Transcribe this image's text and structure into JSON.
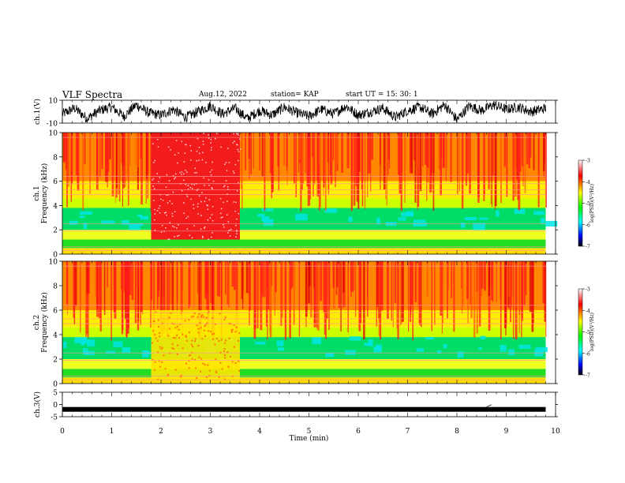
{
  "header": {
    "title": "VLF Spectra",
    "date": "Aug.12, 2022",
    "station": "station= KAP",
    "start": "start  UT  =   15: 30: 1"
  },
  "chart_data": [
    {
      "type": "line",
      "panel": "ch1-waveform",
      "ylabel": "ch.1(V)",
      "ylim": [
        -10,
        10
      ],
      "yticks": [
        "10",
        "-10"
      ],
      "xlim": [
        0,
        10
      ],
      "x": [
        0,
        0.25,
        0.5,
        0.75,
        1.0,
        1.25,
        1.5,
        1.75,
        2.0,
        2.25,
        2.5,
        2.75,
        3.0,
        3.25,
        3.5,
        3.75,
        4.0,
        4.25,
        4.5,
        4.75,
        5.0,
        5.25,
        5.5,
        5.75,
        6.0,
        6.25,
        6.5,
        6.75,
        7.0,
        7.25,
        7.5,
        7.75,
        8.0,
        8.25,
        8.5,
        8.75,
        9.0,
        9.25,
        9.5,
        9.8
      ],
      "values": [
        -2,
        3,
        -6,
        1,
        4,
        -4,
        6,
        -1,
        -3,
        2,
        -5,
        0,
        5,
        -2,
        3,
        -6,
        1,
        -3,
        4,
        -1,
        -4,
        2,
        -2,
        5,
        -3,
        0,
        3,
        -5,
        1,
        4,
        -2,
        6,
        -7,
        5,
        1,
        6,
        2,
        4,
        0,
        3
      ]
    },
    {
      "type": "heatmap",
      "panel": "ch1-spectrogram",
      "ylabel": "ch.1",
      "ylabel2": "Frequency  (kHz)",
      "xlim": [
        0,
        9.8
      ],
      "ylim": [
        0,
        10
      ],
      "yticks": [
        "10",
        "8",
        "6",
        "4",
        "2",
        "0"
      ],
      "colorbar": {
        "range": [
          -7,
          -3
        ],
        "ticks": [
          "-3",
          "-4",
          "-5",
          "-6",
          "-7"
        ],
        "label": "log(PSD)(V²/Hz)"
      },
      "segments": [
        {
          "x": [
            0,
            1.8
          ],
          "level": "mixed"
        },
        {
          "x": [
            1.8,
            3.6
          ],
          "level": "high"
        },
        {
          "x": [
            3.6,
            9.8
          ],
          "level": "mixed"
        }
      ]
    },
    {
      "type": "heatmap",
      "panel": "ch2-spectrogram",
      "ylabel": "ch.2",
      "ylabel2": "Frequency  (kHz)",
      "xlim": [
        0,
        9.8
      ],
      "ylim": [
        0,
        10
      ],
      "yticks": [
        "10",
        "8",
        "6",
        "4",
        "2",
        "0"
      ],
      "colorbar": {
        "range": [
          -7,
          -3
        ],
        "ticks": [
          "-3",
          "-4",
          "-5",
          "-6",
          "-7"
        ],
        "label": "log(PSD)(V²/Hz)"
      },
      "segments": [
        {
          "x": [
            0,
            1.8
          ],
          "level": "mixed"
        },
        {
          "x": [
            1.8,
            3.6
          ],
          "level": "elevated"
        },
        {
          "x": [
            3.6,
            9.8
          ],
          "level": "mixed"
        }
      ]
    },
    {
      "type": "line",
      "panel": "ch3-waveform",
      "ylabel": "ch.3(V)",
      "ylim": [
        -5,
        5
      ],
      "yticks": [
        "5",
        "0",
        "-5"
      ],
      "xlim": [
        0,
        10
      ],
      "x": [
        0,
        9.8
      ],
      "values": [
        -2,
        -2
      ]
    }
  ],
  "xaxis": {
    "label": "Time  (min)",
    "ticks": [
      "0",
      "1",
      "2",
      "3",
      "4",
      "5",
      "6",
      "7",
      "8",
      "9",
      "10"
    ]
  }
}
